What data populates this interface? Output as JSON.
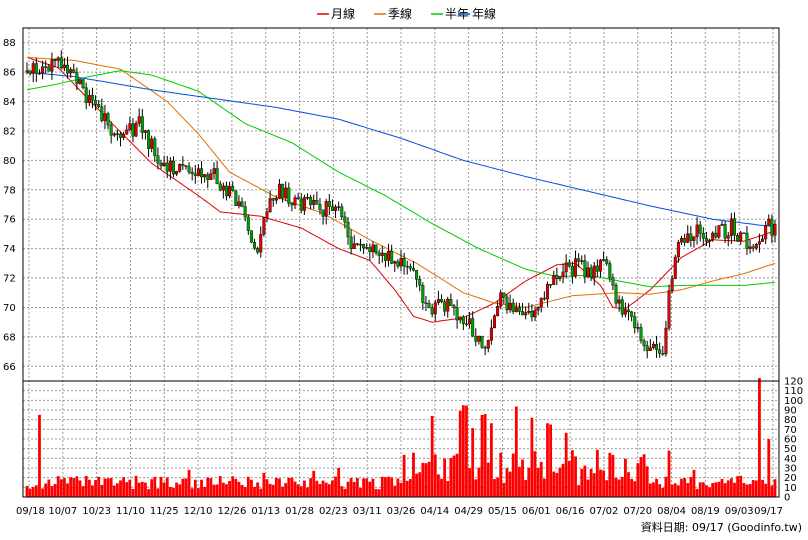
{
  "chart_data": {
    "type": "candlestick",
    "legend": [
      {
        "name": "月線",
        "color": "#e00000"
      },
      {
        "name": "季線",
        "color": "#e07000"
      },
      {
        "name": "半年",
        "color": "#00cc00"
      },
      {
        "name": "年線",
        "color": "#0050e0"
      }
    ],
    "price_axis": {
      "range": [
        65,
        89
      ],
      "ticks": [
        66,
        68,
        70,
        72,
        74,
        76,
        78,
        80,
        82,
        84,
        86,
        88
      ]
    },
    "volume_axis": {
      "range": [
        0,
        120
      ],
      "ticks": [
        0,
        10,
        20,
        30,
        40,
        50,
        60,
        70,
        80,
        90,
        100,
        110,
        120
      ]
    },
    "x_tick_labels": [
      "09/18",
      "10/07",
      "10/23",
      "11/10",
      "11/25",
      "12/10",
      "12/26",
      "01/13",
      "01/28",
      "02/23",
      "03/11",
      "03/26",
      "04/14",
      "04/29",
      "05/15",
      "06/01",
      "06/16",
      "07/02",
      "07/20",
      "08/04",
      "08/19",
      "09/03",
      "09/17"
    ],
    "series": [
      {
        "name": "月線",
        "anchors": [
          [
            0,
            87.0
          ],
          [
            10,
            86.3
          ],
          [
            25,
            83.0
          ],
          [
            40,
            79.8
          ],
          [
            55,
            77.6
          ],
          [
            62,
            76.5
          ],
          [
            75,
            76.2
          ],
          [
            88,
            75.4
          ],
          [
            100,
            74.0
          ],
          [
            110,
            73.2
          ],
          [
            118,
            71.2
          ],
          [
            124,
            69.4
          ],
          [
            130,
            69.0
          ],
          [
            140,
            69.3
          ],
          [
            150,
            70.3
          ],
          [
            160,
            71.8
          ],
          [
            170,
            72.9
          ],
          [
            176,
            73.0
          ],
          [
            184,
            71.5
          ],
          [
            188,
            70.0
          ],
          [
            192,
            69.9
          ],
          [
            200,
            71.2
          ],
          [
            210,
            73.4
          ],
          [
            220,
            74.6
          ],
          [
            230,
            74.5
          ],
          [
            240,
            75.2
          ]
        ]
      },
      {
        "name": "季線",
        "anchors": [
          [
            0,
            87.0
          ],
          [
            15,
            86.8
          ],
          [
            30,
            86.2
          ],
          [
            45,
            84.0
          ],
          [
            55,
            81.8
          ],
          [
            65,
            79.2
          ],
          [
            80,
            77.5
          ],
          [
            95,
            76.4
          ],
          [
            110,
            74.6
          ],
          [
            125,
            73.0
          ],
          [
            140,
            71.0
          ],
          [
            150,
            70.3
          ],
          [
            160,
            70.0
          ],
          [
            175,
            70.8
          ],
          [
            190,
            71.0
          ],
          [
            200,
            70.9
          ],
          [
            210,
            71.2
          ],
          [
            220,
            71.8
          ],
          [
            230,
            72.3
          ],
          [
            240,
            73.0
          ]
        ]
      },
      {
        "name": "半年",
        "anchors": [
          [
            0,
            84.8
          ],
          [
            10,
            85.2
          ],
          [
            20,
            85.7
          ],
          [
            30,
            86.1
          ],
          [
            40,
            85.8
          ],
          [
            55,
            84.7
          ],
          [
            70,
            82.5
          ],
          [
            85,
            81.2
          ],
          [
            100,
            79.2
          ],
          [
            115,
            77.6
          ],
          [
            130,
            75.7
          ],
          [
            145,
            74.0
          ],
          [
            160,
            72.6
          ],
          [
            170,
            72.1
          ],
          [
            180,
            72.2
          ],
          [
            190,
            71.8
          ],
          [
            200,
            71.4
          ],
          [
            210,
            71.5
          ],
          [
            220,
            71.5
          ],
          [
            230,
            71.5
          ],
          [
            240,
            71.7
          ]
        ]
      },
      {
        "name": "年線",
        "anchors": [
          [
            0,
            86.0
          ],
          [
            15,
            85.7
          ],
          [
            40,
            84.8
          ],
          [
            60,
            84.2
          ],
          [
            80,
            83.6
          ],
          [
            100,
            82.8
          ],
          [
            120,
            81.5
          ],
          [
            140,
            80.0
          ],
          [
            160,
            78.9
          ],
          [
            180,
            77.9
          ],
          [
            200,
            76.9
          ],
          [
            220,
            76.0
          ],
          [
            235,
            75.6
          ],
          [
            240,
            75.5
          ]
        ]
      }
    ],
    "price_path": [
      [
        0,
        86.0
      ],
      [
        10,
        86.5
      ],
      [
        16,
        85.5
      ],
      [
        22,
        83.5
      ],
      [
        30,
        81.5
      ],
      [
        36,
        82.5
      ],
      [
        44,
        79.5
      ],
      [
        52,
        79.0
      ],
      [
        60,
        79.0
      ],
      [
        68,
        77.0
      ],
      [
        74,
        74.0
      ],
      [
        78,
        77.8
      ],
      [
        82,
        78.0
      ],
      [
        86,
        77.0
      ],
      [
        94,
        76.8
      ],
      [
        100,
        76.5
      ],
      [
        104,
        74.0
      ],
      [
        112,
        74.2
      ],
      [
        118,
        73.0
      ],
      [
        124,
        72.5
      ],
      [
        128,
        70.0
      ],
      [
        136,
        70.0
      ],
      [
        142,
        69.0
      ],
      [
        146,
        67.2
      ],
      [
        152,
        70.5
      ],
      [
        156,
        69.5
      ],
      [
        160,
        69.6
      ],
      [
        166,
        70.6
      ],
      [
        170,
        72.2
      ],
      [
        176,
        72.8
      ],
      [
        180,
        72.6
      ],
      [
        186,
        72.7
      ],
      [
        190,
        70.0
      ],
      [
        196,
        68.6
      ],
      [
        200,
        67.0
      ],
      [
        204,
        67.4
      ],
      [
        208,
        74.0
      ],
      [
        214,
        75.2
      ],
      [
        220,
        74.8
      ],
      [
        226,
        75.5
      ],
      [
        232,
        74.0
      ],
      [
        238,
        75.7
      ],
      [
        240,
        75.2
      ]
    ]
  },
  "footer": {
    "date_text": "資料日期: 09/17  (Goodinfo.tw)"
  }
}
